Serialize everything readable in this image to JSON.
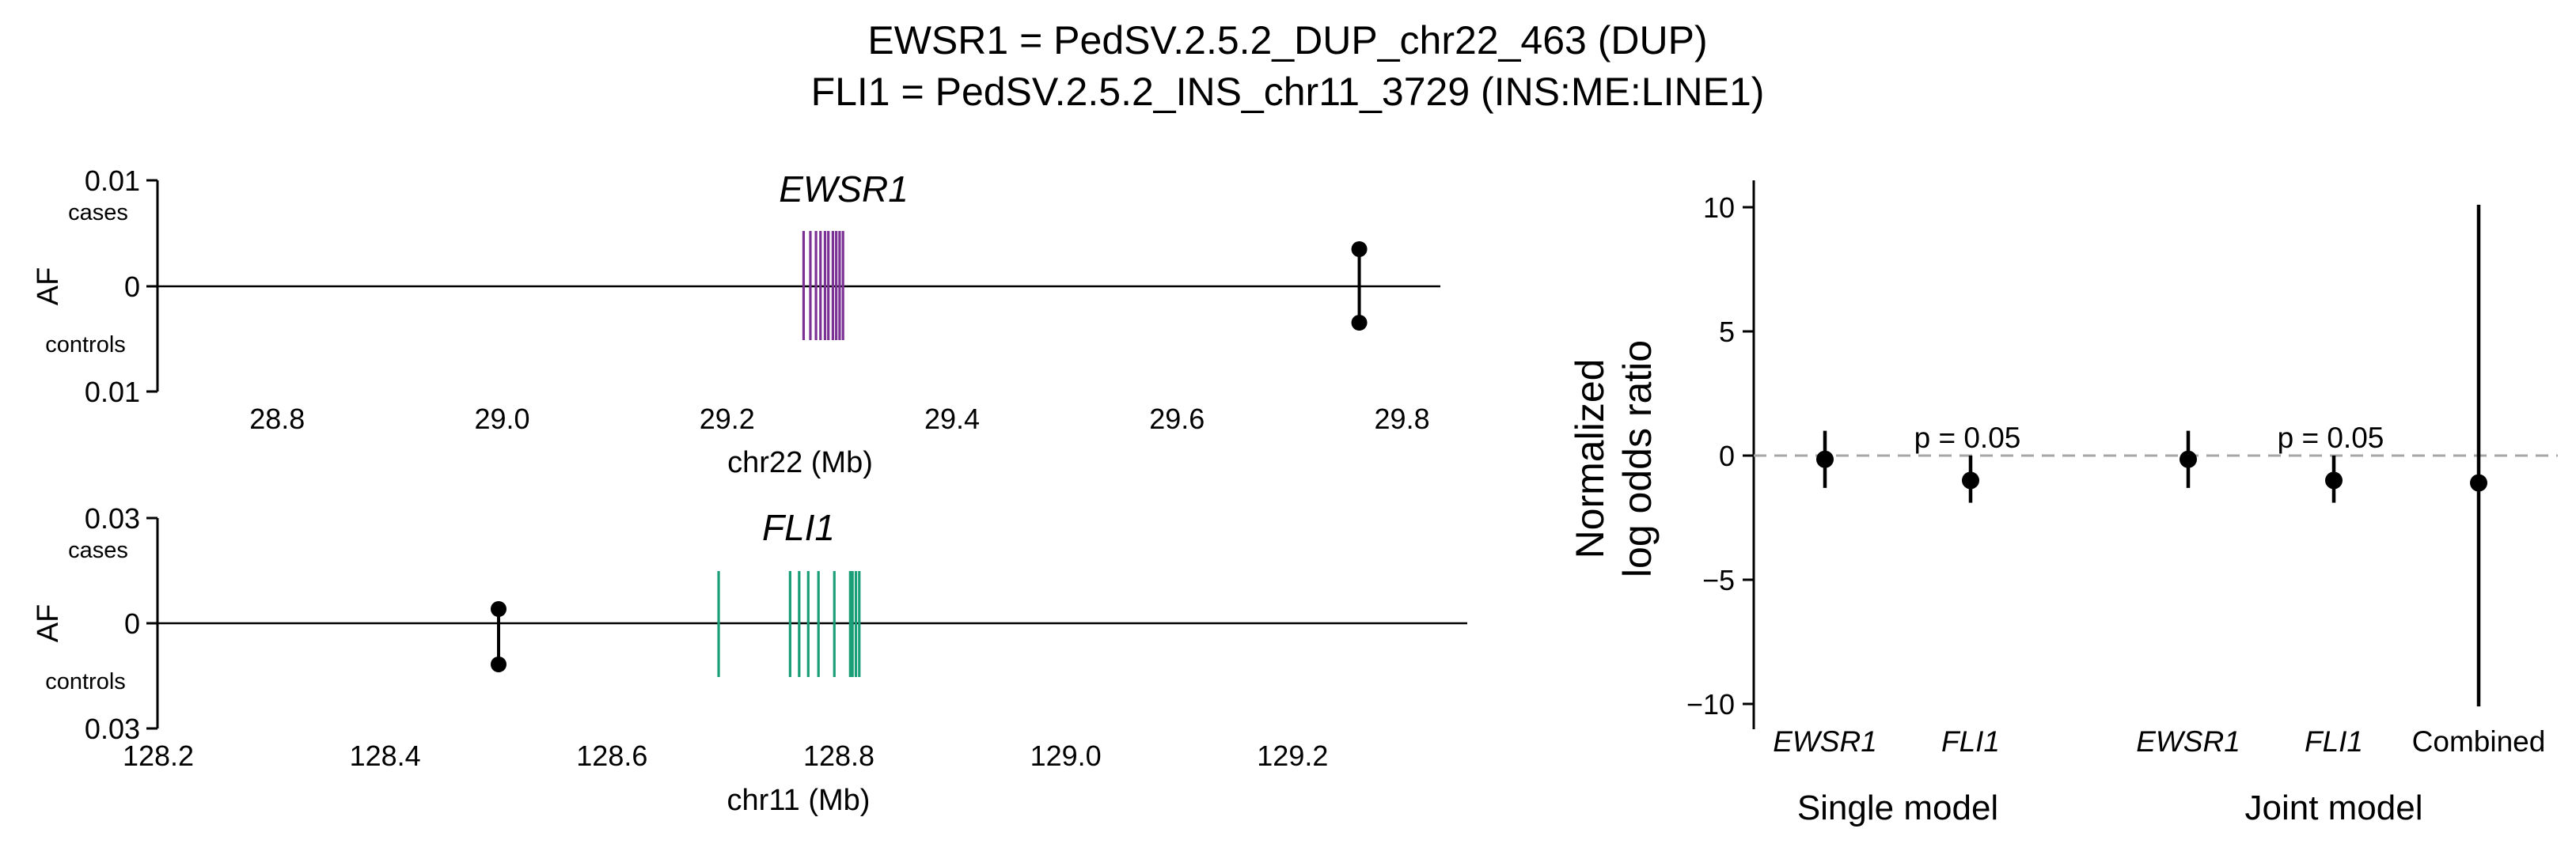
{
  "title_lines": [
    "EWSR1 = PedSV.2.5.2_DUP_chr22_463 (DUP)",
    "FLI1 = PedSV.2.5.2_INS_chr11_3729 (INS:ME:LINE1)"
  ],
  "colors": {
    "ewsr1": "#7b3294",
    "fli1": "#1a9e77",
    "mark": "#000000",
    "ref_line": "#a6a6a6"
  },
  "chart_data": [
    {
      "type": "locus",
      "title": "EWSR1",
      "xlabel": "chr22 (Mb)",
      "ylabel": "AF",
      "case_label": "cases",
      "control_label": "controls",
      "y_top_label": "0.01",
      "y_zero_label": "0",
      "y_bottom_label": "0.01",
      "xlim": [
        28.74,
        29.82
      ],
      "xticks": [
        28.8,
        29.0,
        29.2,
        29.4,
        29.6,
        29.8
      ],
      "xtick_labels": [
        "28.8",
        "29.0",
        "29.2",
        "29.4",
        "29.6",
        "29.8"
      ],
      "gene_exons": [
        29.268,
        29.274,
        29.279,
        29.283,
        29.287,
        29.29,
        29.294,
        29.297,
        29.3,
        29.303
      ],
      "variant": {
        "pos": 29.762,
        "case_af": 0.0034,
        "control_af": -0.0034
      },
      "color_key": "ewsr1"
    },
    {
      "type": "locus",
      "title": "FLI1",
      "xlabel": "chr11 (Mb)",
      "ylabel": "AF",
      "case_label": "cases",
      "control_label": "controls",
      "y_top_label": "0.03",
      "y_zero_label": "0",
      "y_bottom_label": "0.03",
      "xlim": [
        128.2,
        129.34
      ],
      "xticks": [
        128.2,
        128.4,
        128.6,
        128.8,
        129.0,
        129.2
      ],
      "xtick_labels": [
        "128.2",
        "128.4",
        "128.6",
        "128.8",
        "129.0",
        "129.2"
      ],
      "gene_exons": [
        128.694,
        128.757,
        128.765,
        128.773,
        128.782,
        128.796,
        128.81,
        128.812,
        128.815,
        128.818
      ],
      "variant": {
        "pos": 128.5,
        "case_af": 0.0027,
        "control_af": -0.0077
      },
      "color_key": "fli1"
    },
    {
      "type": "scatter",
      "ylabel_lines": [
        "Normalized",
        "log odds ratio"
      ],
      "ylim": [
        -11,
        11
      ],
      "yticks": [
        -10,
        -5,
        0,
        5,
        10
      ],
      "ytick_labels": [
        "−10",
        "−5",
        "0",
        "5",
        "10"
      ],
      "reference_line": 0,
      "points": [
        {
          "label": "EWSR1",
          "italic": true,
          "value": -0.15,
          "ci": [
            -1.3,
            1.0
          ]
        },
        {
          "label": "FLI1",
          "italic": true,
          "value": -1.0,
          "ci": [
            -1.9,
            0.0
          ],
          "annotation": "p = 0.05"
        },
        {
          "label": "EWSR1",
          "italic": true,
          "value": -0.15,
          "ci": [
            -1.3,
            1.0
          ]
        },
        {
          "label": "FLI1",
          "italic": true,
          "value": -1.0,
          "ci": [
            -1.9,
            0.0
          ],
          "annotation": "p = 0.05"
        },
        {
          "label": "Combined",
          "italic": false,
          "value": -1.1,
          "ci": [
            -10.1,
            10.1
          ]
        }
      ],
      "groups": [
        "Single model",
        "Joint model"
      ]
    }
  ]
}
